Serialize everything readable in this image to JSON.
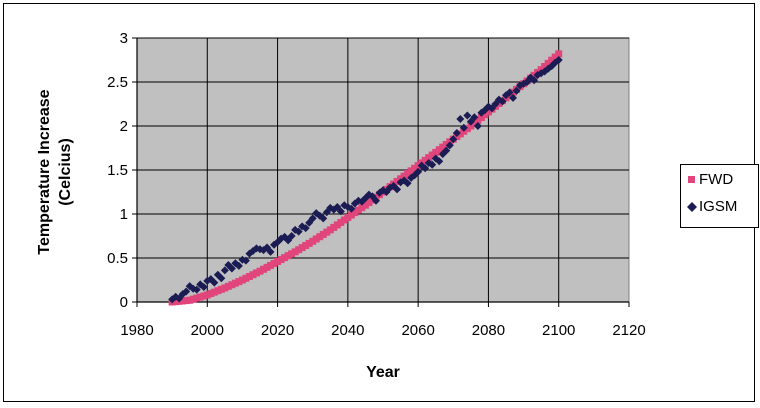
{
  "chart_data": {
    "type": "scatter",
    "title": "",
    "xlabel": "Year",
    "ylabel": "Temperature Increase (Celcius)",
    "ylabel_lines": [
      "Temperature Increase",
      "(Celcius)"
    ],
    "xlim": [
      1980,
      2120
    ],
    "ylim": [
      0,
      3
    ],
    "x_ticks": [
      "1980",
      "2000",
      "2020",
      "2040",
      "2060",
      "2080",
      "2100",
      "2120"
    ],
    "y_ticks": [
      "0",
      "0.5",
      "1",
      "1.5",
      "2",
      "2.5",
      "3"
    ],
    "grid": true,
    "plot_background": "#c0c0c0",
    "legend_position": "right",
    "series": [
      {
        "name": "FWD",
        "marker": "square",
        "color": "#e0457b",
        "x": [
          1990,
          1995,
          2000,
          2005,
          2010,
          2015,
          2020,
          2025,
          2030,
          2035,
          2040,
          2045,
          2050,
          2055,
          2060,
          2065,
          2070,
          2075,
          2080,
          2085,
          2090,
          2095,
          2100
        ],
        "y": [
          0.0,
          0.02,
          0.08,
          0.16,
          0.25,
          0.35,
          0.46,
          0.57,
          0.69,
          0.82,
          0.96,
          1.1,
          1.25,
          1.4,
          1.55,
          1.7,
          1.85,
          2.0,
          2.16,
          2.32,
          2.48,
          2.64,
          2.82
        ]
      },
      {
        "name": "IGSM",
        "marker": "diamond",
        "color": "#1c1c55",
        "x": [
          1990,
          1991,
          1992,
          1993,
          1994,
          1995,
          1996,
          1997,
          1998,
          1999,
          2000,
          2001,
          2002,
          2003,
          2004,
          2005,
          2006,
          2007,
          2008,
          2009,
          2010,
          2011,
          2012,
          2013,
          2014,
          2015,
          2016,
          2017,
          2018,
          2019,
          2020,
          2021,
          2022,
          2023,
          2024,
          2025,
          2026,
          2027,
          2028,
          2029,
          2030,
          2031,
          2032,
          2033,
          2034,
          2035,
          2036,
          2037,
          2038,
          2039,
          2040,
          2041,
          2042,
          2043,
          2044,
          2045,
          2046,
          2047,
          2048,
          2049,
          2050,
          2051,
          2052,
          2053,
          2054,
          2055,
          2056,
          2057,
          2058,
          2059,
          2060,
          2061,
          2062,
          2063,
          2064,
          2065,
          2066,
          2067,
          2068,
          2069,
          2070,
          2071,
          2072,
          2073,
          2074,
          2075,
          2076,
          2077,
          2078,
          2079,
          2080,
          2081,
          2082,
          2083,
          2084,
          2085,
          2086,
          2087,
          2088,
          2089,
          2090,
          2091,
          2092,
          2093,
          2094,
          2095,
          2096,
          2097,
          2098,
          2099,
          2100
        ],
        "y": [
          0.03,
          0.06,
          0.04,
          0.09,
          0.12,
          0.18,
          0.15,
          0.14,
          0.2,
          0.17,
          0.24,
          0.26,
          0.22,
          0.31,
          0.27,
          0.36,
          0.42,
          0.38,
          0.44,
          0.41,
          0.48,
          0.47,
          0.55,
          0.58,
          0.61,
          0.6,
          0.59,
          0.62,
          0.57,
          0.65,
          0.68,
          0.72,
          0.74,
          0.7,
          0.75,
          0.82,
          0.8,
          0.86,
          0.84,
          0.9,
          0.95,
          1.01,
          0.98,
          0.95,
          1.02,
          1.07,
          1.05,
          1.08,
          1.03,
          1.1,
          1.08,
          1.06,
          1.12,
          1.15,
          1.14,
          1.18,
          1.22,
          1.2,
          1.15,
          1.24,
          1.27,
          1.25,
          1.3,
          1.32,
          1.28,
          1.36,
          1.38,
          1.35,
          1.41,
          1.44,
          1.48,
          1.55,
          1.52,
          1.58,
          1.56,
          1.63,
          1.6,
          1.68,
          1.72,
          1.78,
          1.85,
          1.92,
          2.08,
          1.98,
          2.12,
          2.05,
          2.1,
          2.0,
          2.15,
          2.18,
          2.22,
          2.2,
          2.25,
          2.3,
          2.28,
          2.35,
          2.38,
          2.32,
          2.4,
          2.46,
          2.48,
          2.5,
          2.55,
          2.52,
          2.58,
          2.6,
          2.62,
          2.65,
          2.68,
          2.72,
          2.75
        ]
      }
    ]
  },
  "colors": {
    "plot_background": "#c0c0c0",
    "grid": "#000000",
    "fwd": "#e0457b",
    "igsm": "#1c1c55"
  }
}
